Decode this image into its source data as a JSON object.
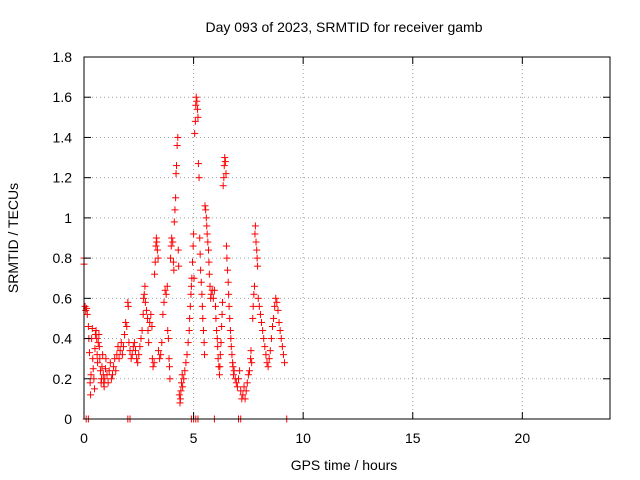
{
  "chart_data": {
    "type": "scatter",
    "title": "Day 093 of 2023, SRMTID for receiver gamb",
    "xlabel": "GPS time / hours",
    "ylabel": "SRMTID / TECUs",
    "xlim": [
      0,
      24
    ],
    "ylim": [
      0,
      1.8
    ],
    "xticks": [
      0,
      5,
      10,
      15,
      20
    ],
    "yticks": [
      0,
      0.2,
      0.4,
      0.6,
      0.8,
      1,
      1.2,
      1.4,
      1.6,
      1.8
    ],
    "ytick_labels": [
      "0",
      "0.2",
      "0.4",
      "0.6",
      "0.8",
      "1",
      "1.2",
      "1.4",
      "1.6",
      "1.8"
    ],
    "grid": true,
    "marker": "plus",
    "colors": {
      "series": "#ff0000",
      "grid": "#a0a0a0",
      "axis": "#000000"
    },
    "series": [
      {
        "points": [
          [
            0.0,
            0.8
          ],
          [
            0.0,
            0.77
          ],
          [
            0.05,
            0.56
          ],
          [
            0.08,
            0.54
          ],
          [
            0.12,
            0.55
          ],
          [
            0.15,
            0.52
          ],
          [
            0.2,
            0.46
          ],
          [
            0.22,
            0.4
          ],
          [
            0.25,
            0.33
          ],
          [
            0.28,
            0.18
          ],
          [
            0.3,
            0.12
          ],
          [
            0.32,
            0.22
          ],
          [
            0.35,
            0.4
          ],
          [
            0.38,
            0.45
          ],
          [
            0.4,
            0.3
          ],
          [
            0.42,
            0.25
          ],
          [
            0.45,
            0.2
          ],
          [
            0.48,
            0.15
          ],
          [
            0.5,
            0.35
          ],
          [
            0.52,
            0.42
          ],
          [
            0.55,
            0.44
          ],
          [
            0.58,
            0.4
          ],
          [
            0.6,
            0.32
          ],
          [
            0.62,
            0.28
          ],
          [
            0.65,
            0.38
          ],
          [
            0.68,
            0.42
          ],
          [
            0.7,
            0.36
          ],
          [
            0.72,
            0.3
          ],
          [
            0.75,
            0.24
          ],
          [
            0.78,
            0.18
          ],
          [
            0.8,
            0.2
          ],
          [
            0.82,
            0.26
          ],
          [
            0.85,
            0.32
          ],
          [
            0.88,
            0.22
          ],
          [
            0.9,
            0.18
          ],
          [
            0.92,
            0.16
          ],
          [
            0.95,
            0.2
          ],
          [
            0.98,
            0.25
          ],
          [
            1.0,
            0.3
          ],
          [
            1.05,
            0.22
          ],
          [
            1.1,
            0.18
          ],
          [
            1.15,
            0.24
          ],
          [
            1.2,
            0.28
          ],
          [
            1.25,
            0.2
          ],
          [
            1.3,
            0.22
          ],
          [
            1.35,
            0.26
          ],
          [
            1.4,
            0.3
          ],
          [
            1.45,
            0.24
          ],
          [
            1.5,
            0.32
          ],
          [
            1.55,
            0.36
          ],
          [
            1.6,
            0.3
          ],
          [
            1.65,
            0.34
          ],
          [
            1.7,
            0.38
          ],
          [
            1.75,
            0.32
          ],
          [
            1.8,
            0.36
          ],
          [
            1.85,
            0.42
          ],
          [
            1.9,
            0.48
          ],
          [
            1.95,
            0.46
          ],
          [
            2.0,
            0.58
          ],
          [
            2.02,
            0.56
          ],
          [
            2.05,
            0.38
          ],
          [
            2.1,
            0.34
          ],
          [
            2.15,
            0.3
          ],
          [
            2.2,
            0.32
          ],
          [
            2.25,
            0.36
          ],
          [
            2.3,
            0.38
          ],
          [
            2.35,
            0.34
          ],
          [
            2.4,
            0.3
          ],
          [
            2.45,
            0.28
          ],
          [
            2.5,
            0.32
          ],
          [
            2.55,
            0.36
          ],
          [
            2.6,
            0.4
          ],
          [
            2.65,
            0.44
          ],
          [
            2.7,
            0.52
          ],
          [
            2.72,
            0.6
          ],
          [
            2.75,
            0.62
          ],
          [
            2.78,
            0.66
          ],
          [
            2.8,
            0.58
          ],
          [
            2.85,
            0.54
          ],
          [
            2.9,
            0.5
          ],
          [
            2.92,
            0.44
          ],
          [
            2.95,
            0.38
          ],
          [
            3.0,
            0.48
          ],
          [
            3.05,
            0.52
          ],
          [
            3.1,
            0.46
          ],
          [
            3.12,
            0.3
          ],
          [
            3.15,
            0.26
          ],
          [
            3.2,
            0.28
          ],
          [
            3.22,
            0.72
          ],
          [
            3.25,
            0.78
          ],
          [
            3.28,
            0.86
          ],
          [
            3.3,
            0.9
          ],
          [
            3.32,
            0.88
          ],
          [
            3.35,
            0.84
          ],
          [
            3.38,
            0.8
          ],
          [
            3.4,
            0.34
          ],
          [
            3.45,
            0.3
          ],
          [
            3.5,
            0.32
          ],
          [
            3.55,
            0.38
          ],
          [
            3.6,
            0.52
          ],
          [
            3.65,
            0.58
          ],
          [
            3.7,
            0.64
          ],
          [
            3.75,
            0.62
          ],
          [
            3.8,
            0.66
          ],
          [
            3.82,
            0.44
          ],
          [
            3.85,
            0.4
          ],
          [
            3.88,
            0.3
          ],
          [
            3.9,
            0.26
          ],
          [
            3.92,
            0.2
          ],
          [
            3.95,
            0.8
          ],
          [
            3.98,
            0.86
          ],
          [
            4.0,
            0.9
          ],
          [
            4.05,
            0.88
          ],
          [
            4.08,
            0.78
          ],
          [
            4.1,
            0.74
          ],
          [
            4.12,
            0.98
          ],
          [
            4.15,
            1.04
          ],
          [
            4.18,
            1.1
          ],
          [
            4.2,
            1.22
          ],
          [
            4.22,
            1.26
          ],
          [
            4.25,
            1.36
          ],
          [
            4.28,
            1.4
          ],
          [
            4.3,
            0.84
          ],
          [
            4.32,
            0.76
          ],
          [
            4.35,
            0.12
          ],
          [
            4.38,
            0.08
          ],
          [
            4.4,
            0.1
          ],
          [
            4.42,
            0.14
          ],
          [
            4.45,
            0.18
          ],
          [
            4.48,
            0.22
          ],
          [
            4.5,
            0.16
          ],
          [
            4.55,
            0.2
          ],
          [
            4.6,
            0.24
          ],
          [
            4.65,
            0.28
          ],
          [
            4.7,
            0.32
          ],
          [
            4.75,
            0.38
          ],
          [
            4.8,
            0.44
          ],
          [
            4.82,
            0.5
          ],
          [
            4.85,
            0.56
          ],
          [
            4.88,
            0.62
          ],
          [
            4.9,
            0.66
          ],
          [
            4.92,
            0.7
          ],
          [
            4.95,
            0.78
          ],
          [
            4.98,
            0.86
          ],
          [
            5.0,
            0.92
          ],
          [
            5.02,
            0.7
          ],
          [
            5.05,
            1.42
          ],
          [
            5.08,
            1.48
          ],
          [
            5.1,
            1.56
          ],
          [
            5.12,
            1.6
          ],
          [
            5.15,
            1.58
          ],
          [
            5.18,
            1.54
          ],
          [
            5.2,
            1.5
          ],
          [
            5.22,
            1.27
          ],
          [
            5.25,
            1.2
          ],
          [
            5.28,
            0.9
          ],
          [
            5.3,
            0.82
          ],
          [
            5.32,
            0.74
          ],
          [
            5.35,
            0.68
          ],
          [
            5.38,
            0.62
          ],
          [
            5.4,
            0.56
          ],
          [
            5.42,
            0.5
          ],
          [
            5.45,
            0.44
          ],
          [
            5.48,
            0.38
          ],
          [
            5.5,
            0.32
          ],
          [
            5.52,
            1.06
          ],
          [
            5.55,
            1.04
          ],
          [
            5.58,
            1.0
          ],
          [
            5.6,
            0.96
          ],
          [
            5.62,
            0.92
          ],
          [
            5.65,
            0.88
          ],
          [
            5.68,
            0.84
          ],
          [
            5.7,
            0.78
          ],
          [
            5.72,
            0.72
          ],
          [
            5.75,
            0.66
          ],
          [
            5.78,
            0.6
          ],
          [
            5.8,
            0.62
          ],
          [
            5.85,
            0.64
          ],
          [
            5.9,
            0.6
          ],
          [
            5.95,
            0.64
          ],
          [
            6.0,
            0.56
          ],
          [
            6.02,
            0.5
          ],
          [
            6.05,
            0.44
          ],
          [
            6.08,
            0.4
          ],
          [
            6.1,
            0.36
          ],
          [
            6.12,
            0.3
          ],
          [
            6.15,
            0.26
          ],
          [
            6.18,
            0.22
          ],
          [
            6.2,
            0.26
          ],
          [
            6.22,
            0.32
          ],
          [
            6.25,
            0.38
          ],
          [
            6.28,
            0.46
          ],
          [
            6.3,
            0.52
          ],
          [
            6.32,
            0.58
          ],
          [
            6.35,
            1.16
          ],
          [
            6.38,
            1.2
          ],
          [
            6.4,
            1.26
          ],
          [
            6.42,
            1.3
          ],
          [
            6.45,
            1.28
          ],
          [
            6.48,
            1.22
          ],
          [
            6.5,
            0.86
          ],
          [
            6.52,
            0.8
          ],
          [
            6.55,
            0.74
          ],
          [
            6.58,
            0.68
          ],
          [
            6.6,
            0.62
          ],
          [
            6.62,
            0.56
          ],
          [
            6.65,
            0.5
          ],
          [
            6.68,
            0.44
          ],
          [
            6.7,
            0.4
          ],
          [
            6.72,
            0.36
          ],
          [
            6.75,
            0.32
          ],
          [
            6.78,
            0.28
          ],
          [
            6.8,
            0.26
          ],
          [
            6.82,
            0.22
          ],
          [
            6.85,
            0.24
          ],
          [
            6.9,
            0.2
          ],
          [
            6.95,
            0.18
          ],
          [
            7.0,
            0.16
          ],
          [
            7.05,
            0.2
          ],
          [
            7.1,
            0.24
          ],
          [
            7.15,
            0.14
          ],
          [
            7.2,
            0.1
          ],
          [
            7.25,
            0.12
          ],
          [
            7.3,
            0.16
          ],
          [
            7.35,
            0.1
          ],
          [
            7.4,
            0.14
          ],
          [
            7.45,
            0.18
          ],
          [
            7.5,
            0.22
          ],
          [
            7.55,
            0.24
          ],
          [
            7.6,
            0.3
          ],
          [
            7.62,
            0.34
          ],
          [
            7.65,
            0.28
          ],
          [
            7.7,
            0.5
          ],
          [
            7.72,
            0.56
          ],
          [
            7.75,
            0.62
          ],
          [
            7.78,
            0.66
          ],
          [
            7.8,
            0.92
          ],
          [
            7.82,
            0.96
          ],
          [
            7.85,
            0.88
          ],
          [
            7.88,
            0.84
          ],
          [
            7.9,
            0.8
          ],
          [
            7.92,
            0.76
          ],
          [
            7.95,
            0.6
          ],
          [
            8.0,
            0.56
          ],
          [
            8.05,
            0.52
          ],
          [
            8.1,
            0.48
          ],
          [
            8.15,
            0.44
          ],
          [
            8.2,
            0.4
          ],
          [
            8.25,
            0.36
          ],
          [
            8.3,
            0.32
          ],
          [
            8.35,
            0.28
          ],
          [
            8.4,
            0.26
          ],
          [
            8.45,
            0.3
          ],
          [
            8.5,
            0.34
          ],
          [
            8.55,
            0.4
          ],
          [
            8.6,
            0.46
          ],
          [
            8.65,
            0.5
          ],
          [
            8.7,
            0.56
          ],
          [
            8.75,
            0.6
          ],
          [
            8.8,
            0.58
          ],
          [
            8.85,
            0.54
          ],
          [
            8.9,
            0.48
          ],
          [
            8.95,
            0.44
          ],
          [
            9.0,
            0.4
          ],
          [
            9.05,
            0.36
          ],
          [
            9.1,
            0.32
          ],
          [
            9.15,
            0.28
          ],
          [
            0.1,
            0.0
          ],
          [
            0.2,
            0.0
          ],
          [
            2.0,
            0.0
          ],
          [
            2.1,
            0.0
          ],
          [
            4.9,
            0.0
          ],
          [
            5.0,
            0.0
          ],
          [
            5.1,
            0.0
          ],
          [
            5.2,
            0.0
          ],
          [
            5.95,
            0.0
          ],
          [
            7.05,
            0.0
          ],
          [
            7.15,
            0.0
          ],
          [
            9.25,
            0.0
          ]
        ]
      }
    ]
  }
}
